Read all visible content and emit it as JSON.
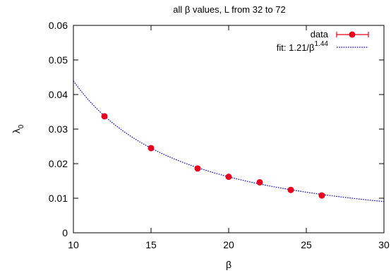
{
  "chart_data": {
    "type": "scatter",
    "title": "all β values, L from 32 to 72",
    "xlabel": "β",
    "ylabel": "λ",
    "ylabel_subscript": "0",
    "xlim": [
      10,
      30
    ],
    "ylim": [
      0,
      0.06
    ],
    "x_ticks": [
      "10",
      "15",
      "20",
      "25",
      "30"
    ],
    "y_ticks": [
      "0",
      "0.01",
      "0.02",
      "0.03",
      "0.04",
      "0.05",
      "0.06"
    ],
    "grid": false,
    "legend_position": "top-right",
    "series": [
      {
        "name": "data",
        "kind": "points",
        "color": "#e8001c",
        "x": [
          12,
          15,
          18,
          20,
          22,
          24,
          26
        ],
        "y": [
          0.0337,
          0.0245,
          0.0186,
          0.0162,
          0.0146,
          0.0124,
          0.0108
        ]
      },
      {
        "name": "fit: 1.21/β",
        "name_superscript": "1.44",
        "kind": "fit",
        "color": "#0000c8",
        "coefficient": 1.21,
        "exponent": 1.44
      }
    ]
  }
}
